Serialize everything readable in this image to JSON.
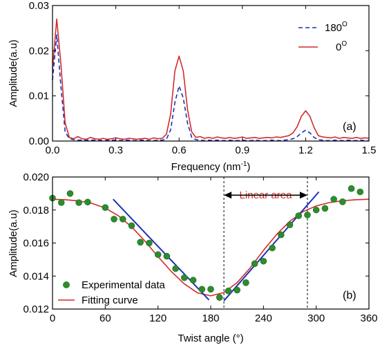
{
  "chart_data": [
    {
      "type": "line",
      "panel_label": "(a)",
      "xlabel": "Frequency",
      "xlabel_unit": "(nm",
      "xlabel_unit_exp": "-1",
      "xlabel_unit_close": ")",
      "ylabel": "Amplitude(a.u)",
      "xlim": [
        0,
        1.5
      ],
      "ylim": [
        0,
        0.03
      ],
      "x_ticks": [
        0.0,
        0.3,
        0.6,
        0.9,
        1.2,
        1.5
      ],
      "x_tick_labels": [
        "0.0",
        "0.3",
        "0.6",
        "0.9",
        "1.2",
        "1.5"
      ],
      "y_ticks": [
        0.0,
        0.01,
        0.02,
        0.03
      ],
      "y_tick_labels": [
        "0.00",
        "0.01",
        "0.02",
        "0.03"
      ],
      "legend_position": "top-right",
      "x": [
        0.0,
        0.02,
        0.04,
        0.06,
        0.08,
        0.1,
        0.12,
        0.14,
        0.16,
        0.18,
        0.2,
        0.22,
        0.24,
        0.26,
        0.28,
        0.3,
        0.32,
        0.34,
        0.36,
        0.38,
        0.4,
        0.42,
        0.44,
        0.46,
        0.48,
        0.5,
        0.52,
        0.54,
        0.56,
        0.58,
        0.6,
        0.62,
        0.64,
        0.66,
        0.68,
        0.7,
        0.72,
        0.74,
        0.76,
        0.78,
        0.8,
        0.82,
        0.84,
        0.86,
        0.88,
        0.9,
        0.92,
        0.94,
        0.96,
        0.98,
        1.0,
        1.02,
        1.04,
        1.06,
        1.08,
        1.1,
        1.12,
        1.14,
        1.16,
        1.18,
        1.2,
        1.22,
        1.24,
        1.26,
        1.28,
        1.3,
        1.32,
        1.34,
        1.36,
        1.38,
        1.4,
        1.42,
        1.44,
        1.46,
        1.48,
        1.5
      ],
      "series": [
        {
          "name": "180",
          "name_sup": "O",
          "color": "#1a2fb8",
          "dash": true,
          "values": [
            0.0135,
            0.0235,
            0.012,
            0.002,
            0.0005,
            0.0003,
            0.0002,
            0.0002,
            0.0002,
            0.0002,
            0.0002,
            0.0002,
            0.0001,
            0.0002,
            0.0002,
            0.0002,
            0.0001,
            0.0002,
            0.0002,
            0.0001,
            0.0001,
            0.0002,
            0.0002,
            0.0001,
            0.0001,
            0.0002,
            0.0002,
            0.0004,
            0.0025,
            0.0085,
            0.0122,
            0.0095,
            0.004,
            0.0008,
            0.0003,
            0.0002,
            0.0001,
            0.0002,
            0.0001,
            0.0002,
            0.0001,
            0.0001,
            0.0002,
            0.0001,
            0.0001,
            0.0002,
            0.0001,
            0.0001,
            0.0002,
            0.0001,
            0.0001,
            0.0001,
            0.0002,
            0.0001,
            0.0001,
            0.0002,
            0.0003,
            0.0005,
            0.001,
            0.0018,
            0.0024,
            0.0018,
            0.0008,
            0.0003,
            0.0002,
            0.0001,
            0.0001,
            0.0002,
            0.0001,
            0.0001,
            0.0002,
            0.0001,
            0.0001,
            0.0002,
            0.0001,
            0.0001
          ]
        },
        {
          "name": "0",
          "name_sup": "O",
          "color": "#d42a2a",
          "dash": false,
          "values": [
            0.016,
            0.027,
            0.017,
            0.004,
            0.0008,
            0.0005,
            0.001,
            0.0005,
            0.0004,
            0.0008,
            0.0005,
            0.0004,
            0.0006,
            0.0004,
            0.0005,
            0.0007,
            0.0005,
            0.0004,
            0.0006,
            0.0005,
            0.0004,
            0.0005,
            0.0006,
            0.0004,
            0.0007,
            0.0005,
            0.0006,
            0.0015,
            0.006,
            0.0155,
            0.0188,
            0.0155,
            0.007,
            0.002,
            0.0008,
            0.001,
            0.0006,
            0.0008,
            0.0006,
            0.0009,
            0.0007,
            0.0006,
            0.0008,
            0.0006,
            0.0007,
            0.0009,
            0.0006,
            0.0007,
            0.0008,
            0.0006,
            0.0007,
            0.0008,
            0.0007,
            0.0009,
            0.0008,
            0.001,
            0.0012,
            0.0018,
            0.0032,
            0.0055,
            0.0067,
            0.0055,
            0.003,
            0.0012,
            0.0009,
            0.0008,
            0.0007,
            0.0009,
            0.0006,
            0.0008,
            0.0007,
            0.0006,
            0.0008,
            0.0006,
            0.0007,
            0.0006
          ]
        }
      ]
    },
    {
      "type": "scatter",
      "panel_label": "(b)",
      "xlabel": "Twist angle (°)",
      "ylabel": "Amplitude(a.u)",
      "xlim": [
        0,
        360
      ],
      "ylim": [
        0.012,
        0.02
      ],
      "x_ticks": [
        0,
        60,
        120,
        180,
        240,
        300,
        360
      ],
      "x_tick_labels": [
        "0",
        "60",
        "120",
        "180",
        "240",
        "300",
        "360"
      ],
      "y_ticks": [
        0.012,
        0.014,
        0.016,
        0.018,
        0.02
      ],
      "y_tick_labels": [
        "0.012",
        "0.014",
        "0.016",
        "0.018",
        "0.020"
      ],
      "legend_position": "bottom-left",
      "annotation": "Linear area",
      "annotation_range": [
        195,
        290
      ],
      "annotation_y": 0.0189,
      "experimental": {
        "name": "Experimental data",
        "color": "#2e8b2e",
        "x": [
          0,
          10,
          20,
          30,
          40,
          60,
          70,
          80,
          90,
          100,
          110,
          120,
          130,
          140,
          150,
          160,
          170,
          180,
          190,
          200,
          210,
          220,
          230,
          240,
          250,
          260,
          270,
          280,
          290,
          300,
          310,
          320,
          330,
          340,
          350
        ],
        "y": [
          0.01872,
          0.01845,
          0.019,
          0.01845,
          0.01848,
          0.01815,
          0.01745,
          0.01745,
          0.01705,
          0.01605,
          0.016,
          0.0153,
          0.0152,
          0.01445,
          0.0139,
          0.01375,
          0.0132,
          0.0132,
          0.0127,
          0.0131,
          0.01315,
          0.0136,
          0.01475,
          0.0149,
          0.0157,
          0.0165,
          0.0171,
          0.01765,
          0.0177,
          0.018,
          0.0181,
          0.01865,
          0.0185,
          0.0193,
          0.0191
        ]
      },
      "fit": {
        "name": "Fitting curve",
        "color": "#d42a2a",
        "x": [
          0,
          15,
          30,
          45,
          60,
          75,
          90,
          105,
          120,
          135,
          150,
          165,
          180,
          195,
          210,
          225,
          240,
          255,
          270,
          285,
          300,
          315,
          330,
          345,
          360
        ],
        "y": [
          0.01865,
          0.01862,
          0.01855,
          0.0184,
          0.01812,
          0.01765,
          0.01698,
          0.01612,
          0.01518,
          0.01428,
          0.01352,
          0.01298,
          0.0128,
          0.013,
          0.0136,
          0.0145,
          0.01555,
          0.01652,
          0.01732,
          0.0179,
          0.01825,
          0.01845,
          0.01856,
          0.01862,
          0.01865
        ]
      },
      "linear_fits": {
        "color": "#1a2fb8",
        "segments": [
          {
            "x": [
              69,
              178
            ],
            "y": [
              0.01865,
              0.01255
            ]
          },
          {
            "x": [
              195,
              303
            ],
            "y": [
              0.0125,
              0.0191
            ]
          }
        ]
      }
    }
  ]
}
